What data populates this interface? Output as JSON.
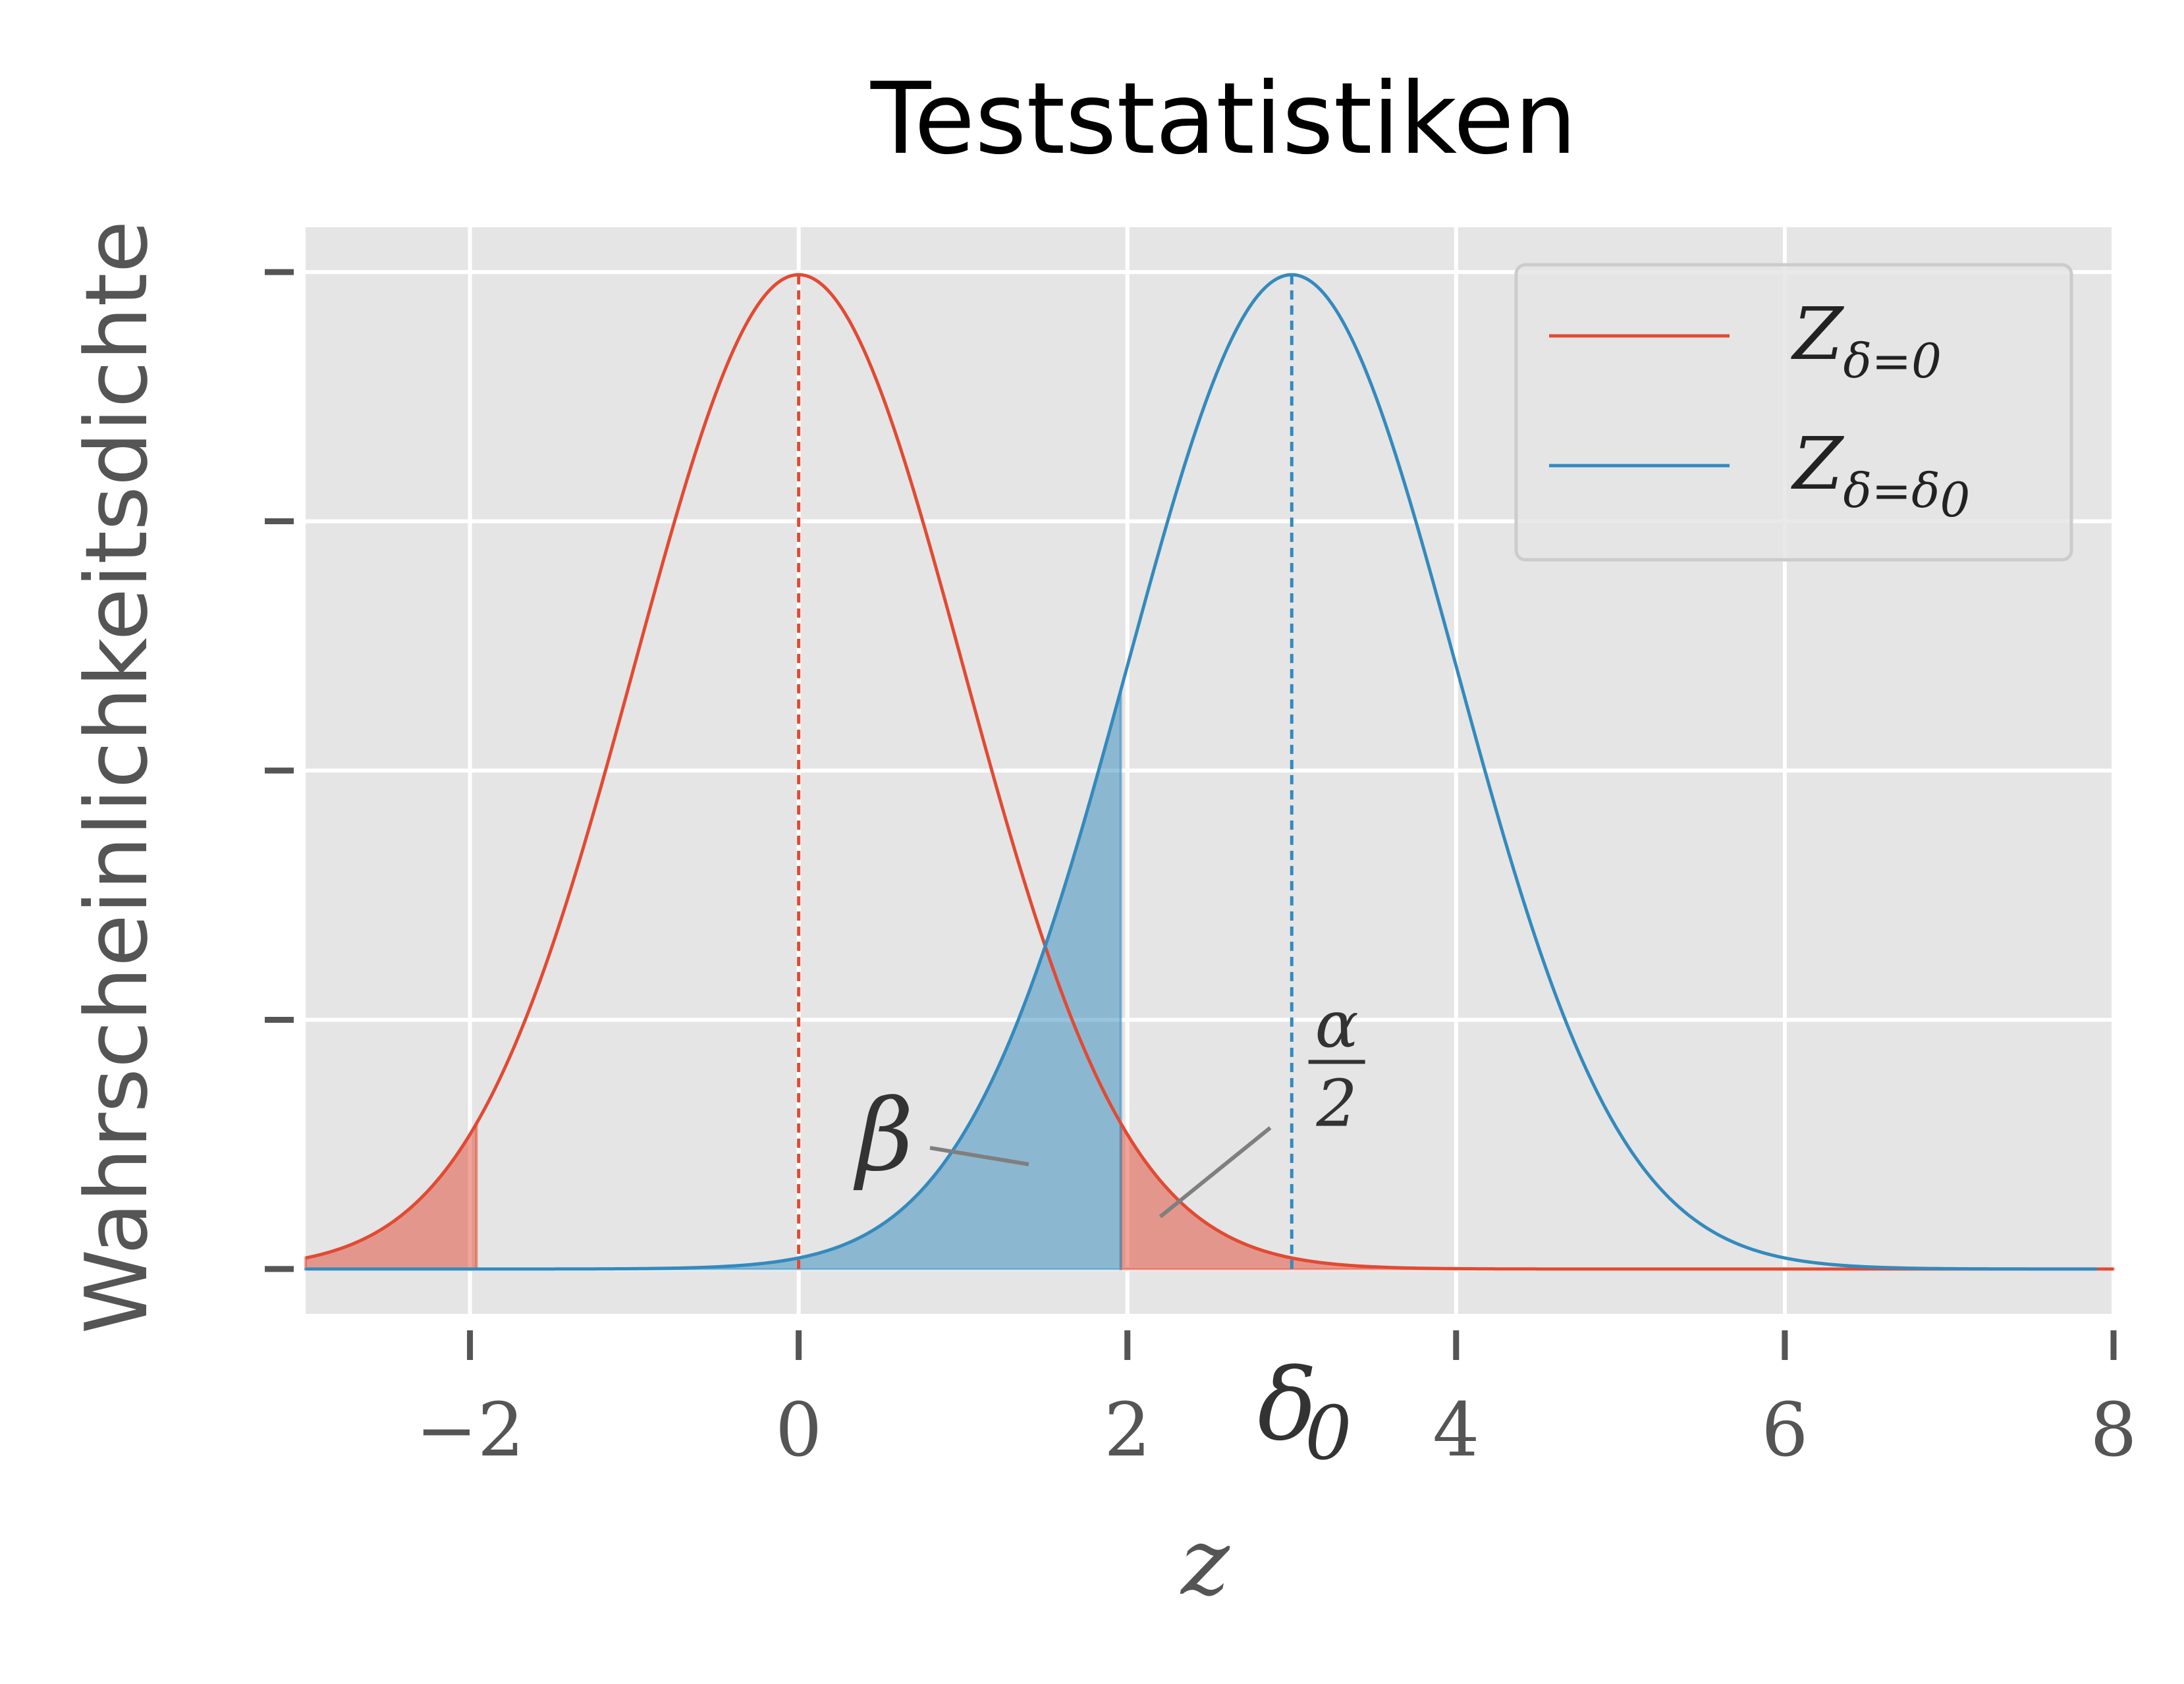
{
  "chart_data": {
    "type": "line",
    "title": "Teststatistiken",
    "xlabel": "z",
    "ylabel": "Wahrscheinlichkeitsdichte",
    "xlim": [
      -3.0,
      8.0
    ],
    "ylim": [
      -0.018,
      0.418
    ],
    "xticks": [
      {
        "value": -2,
        "label": "−2"
      },
      {
        "value": 0,
        "label": "0"
      },
      {
        "value": 2,
        "label": "2"
      },
      {
        "value": 4,
        "label": "4"
      },
      {
        "value": 6,
        "label": "6"
      },
      {
        "value": 8,
        "label": "8"
      }
    ],
    "yticks": [
      0.0,
      0.1,
      0.2,
      0.3,
      0.4
    ],
    "yticklabels_shown": false,
    "grid": true,
    "legend_position": "top-right",
    "series": [
      {
        "id": "z0",
        "legend_main": "Z",
        "legend_sub": "δ=0",
        "color": "#e24a33",
        "mean": 0,
        "sd": 1,
        "x_range": [
          -3.0,
          8.0
        ]
      },
      {
        "id": "z1",
        "legend_main": "Z",
        "legend_sub": "δ=δ",
        "legend_subsub": "0",
        "color": "#348abd",
        "mean": 3,
        "sd": 1,
        "x_range": [
          -3.0,
          7.9
        ]
      }
    ],
    "critical_value": 1.96,
    "shaded_regions": [
      {
        "series": "z0",
        "from": -3.0,
        "to": -1.96,
        "color": "#e24a33",
        "meaning": "alpha/2 lower"
      },
      {
        "series": "z0",
        "from": 1.96,
        "to": 8.0,
        "color": "#e24a33",
        "meaning": "alpha/2 upper"
      },
      {
        "series": "z1",
        "from": -3.0,
        "to": 1.96,
        "color": "#348abd",
        "meaning": "beta"
      }
    ],
    "mean_lines": [
      {
        "x": 0,
        "color": "#e24a33",
        "style": "dashed"
      },
      {
        "x": 3,
        "color": "#348abd",
        "style": "dashed"
      }
    ],
    "annotations": [
      {
        "label": "β",
        "points_to": [
          1.4,
          0.042
        ]
      },
      {
        "label_num": "α",
        "label_den": "2",
        "points_to": [
          2.2,
          0.021
        ]
      }
    ],
    "delta_label": {
      "main": "δ",
      "sub": "0",
      "x": 3
    }
  }
}
